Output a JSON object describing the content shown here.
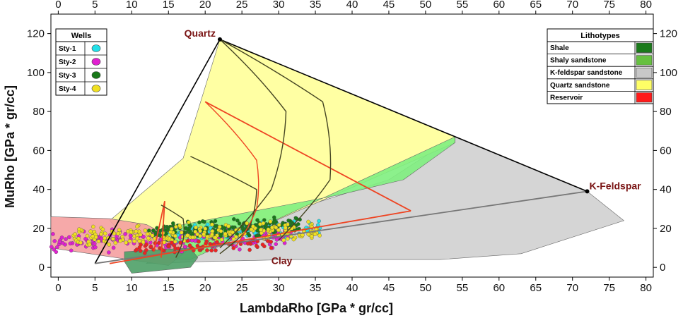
{
  "chart_data": {
    "type": "scatter",
    "title": "",
    "xlabel": "LambdaRho [GPa * gr/cc]",
    "ylabel": "MuRho [GPa * gr/cc]",
    "xlim": [
      -1,
      81
    ],
    "ylim": [
      -5,
      130
    ],
    "x_ticks": [
      0,
      5,
      10,
      15,
      20,
      25,
      30,
      35,
      40,
      45,
      50,
      55,
      60,
      65,
      70,
      75,
      80
    ],
    "y_ticks": [
      0,
      20,
      40,
      60,
      80,
      100,
      120
    ],
    "wells_legend": {
      "title": "Wells",
      "items": [
        {
          "label": "Sty-1",
          "color": "#22e0e8"
        },
        {
          "label": "Sty-2",
          "color": "#e020d0"
        },
        {
          "label": "Sty-3",
          "color": "#187818"
        },
        {
          "label": "Sty-4",
          "color": "#f0e020"
        }
      ]
    },
    "lithotypes_legend": {
      "title": "Lithotypes",
      "items": [
        {
          "label": "Shale",
          "color": "#1a7a1a"
        },
        {
          "label": "Shaly sandstone",
          "color": "#66c040"
        },
        {
          "label": "K-feldspar sandstone",
          "color": "#c8c8c8"
        },
        {
          "label": "Quartz sandstone",
          "color": "#ffff66"
        },
        {
          "label": "Reservoir",
          "color": "#ff1a1a"
        }
      ]
    },
    "regions": [
      {
        "name": "K-feldspar sandstone",
        "color": "#d0d0d0",
        "points": [
          [
            54,
            67
          ],
          [
            72,
            39
          ],
          [
            77,
            24
          ],
          [
            63,
            7
          ],
          [
            52,
            4
          ],
          [
            32,
            4
          ],
          [
            20,
            3
          ],
          [
            12,
            2
          ],
          [
            14,
            8
          ],
          [
            45,
            45
          ],
          [
            54,
            67
          ]
        ]
      },
      {
        "name": "Quartz sandstone",
        "color": "#ffff99",
        "points": [
          [
            22,
            117
          ],
          [
            54,
            67
          ],
          [
            54,
            64
          ],
          [
            18,
            5
          ],
          [
            12,
            5
          ],
          [
            7,
            24
          ],
          [
            17,
            56
          ],
          [
            22,
            117
          ]
        ]
      },
      {
        "name": "Shaly sandstone",
        "color": "#7ff07f",
        "points": [
          [
            54,
            67
          ],
          [
            54,
            64
          ],
          [
            47,
            45
          ],
          [
            38,
            37
          ],
          [
            17,
            22
          ],
          [
            12,
            14
          ],
          [
            13,
            5
          ],
          [
            18,
            4
          ],
          [
            54,
            67
          ]
        ]
      },
      {
        "name": "Reservoir zone",
        "color": "#f5a0a0",
        "points": [
          [
            -1,
            26
          ],
          [
            7,
            25
          ],
          [
            12,
            22
          ],
          [
            18,
            10
          ],
          [
            15,
            1
          ],
          [
            -1,
            10
          ]
        ]
      },
      {
        "name": "Shale",
        "color": "#4ea067",
        "points": [
          [
            9,
            8
          ],
          [
            18,
            10
          ],
          [
            19,
            5
          ],
          [
            18,
            0
          ],
          [
            10,
            -3
          ],
          [
            9,
            3
          ]
        ]
      }
    ],
    "series": [
      {
        "name": "Sty-1",
        "color": "#22e0e8",
        "cluster": {
          "x_range": [
            14,
            36
          ],
          "y_center": 17,
          "slope": 0.45,
          "spread": 4,
          "count": 130
        }
      },
      {
        "name": "Sty-2",
        "color": "#e020d0",
        "cluster": {
          "x_range": [
            -1,
            32
          ],
          "y_center": 13,
          "slope": 0.25,
          "spread": 5,
          "count": 180
        }
      },
      {
        "name": "Sty-3",
        "color": "#187818",
        "cluster": {
          "x_range": [
            12,
            33
          ],
          "y_center": 18,
          "slope": 0.5,
          "spread": 4,
          "count": 200
        }
      },
      {
        "name": "Sty-4",
        "color": "#f0e020",
        "cluster": {
          "x_range": [
            2,
            36
          ],
          "y_center": 15,
          "slope": 0.3,
          "spread": 5,
          "count": 230
        }
      },
      {
        "name": "Reservoir",
        "color": "#ee2222",
        "cluster": {
          "x_range": [
            10,
            30
          ],
          "y_center": 10,
          "slope": 0.25,
          "spread": 3,
          "count": 70
        }
      }
    ],
    "lines": [
      {
        "name": "Quartz-K-Feldspar",
        "color": "#000000",
        "points": [
          [
            22,
            117
          ],
          [
            72,
            39
          ]
        ]
      },
      {
        "name": "Quartz-Clay",
        "color": "#000000",
        "points": [
          [
            22,
            117
          ],
          [
            5,
            2
          ]
        ]
      },
      {
        "name": "Clay-K-Feldspar",
        "color": "#777777",
        "points": [
          [
            5,
            2
          ],
          [
            72,
            39
          ]
        ]
      },
      {
        "name": "Red boundary upper",
        "color": "#ee4422",
        "points": [
          [
            20,
            85
          ],
          [
            48,
            29
          ]
        ]
      },
      {
        "name": "Red boundary lower",
        "color": "#ee4422",
        "points": [
          [
            7,
            2
          ],
          [
            48,
            29
          ]
        ]
      },
      {
        "name": "Red boundary mid",
        "color": "#ee4422",
        "points": [
          [
            13,
            8
          ],
          [
            14.5,
            34
          ],
          [
            14,
            5
          ]
        ]
      }
    ],
    "curves": [
      {
        "name": "Quartz arc outer",
        "color": "#444422",
        "points": [
          [
            22,
            117
          ],
          [
            36,
            85
          ],
          [
            37,
            45
          ],
          [
            30,
            14
          ]
        ]
      },
      {
        "name": "Quartz arc inner",
        "color": "#444422",
        "points": [
          [
            22,
            117
          ],
          [
            31,
            80
          ],
          [
            29,
            40
          ],
          [
            22,
            10
          ]
        ]
      },
      {
        "name": "Mid arc",
        "color": "#444422",
        "points": [
          [
            18,
            57
          ],
          [
            27,
            40
          ],
          [
            26,
            20
          ],
          [
            22,
            7
          ]
        ]
      },
      {
        "name": "Low arc",
        "color": "#444422",
        "points": [
          [
            14,
            32
          ],
          [
            17,
            25
          ],
          [
            17,
            14
          ],
          [
            16,
            5
          ]
        ]
      },
      {
        "name": "Red arc",
        "color": "#ee4422",
        "points": [
          [
            20,
            85
          ],
          [
            27,
            55
          ],
          [
            27,
            30
          ],
          [
            24,
            10
          ]
        ]
      }
    ],
    "annotations": [
      {
        "text": "Quartz",
        "x": 22,
        "y": 117,
        "anchor": "end"
      },
      {
        "text": "K-Feldspar",
        "x": 72,
        "y": 39,
        "anchor": "start"
      },
      {
        "text": "Clay",
        "x": 29,
        "y": 1,
        "anchor": "start"
      }
    ],
    "endmembers": [
      {
        "name": "Quartz",
        "x": 22,
        "y": 117
      },
      {
        "name": "K-Feldspar",
        "x": 72,
        "y": 39
      }
    ]
  }
}
